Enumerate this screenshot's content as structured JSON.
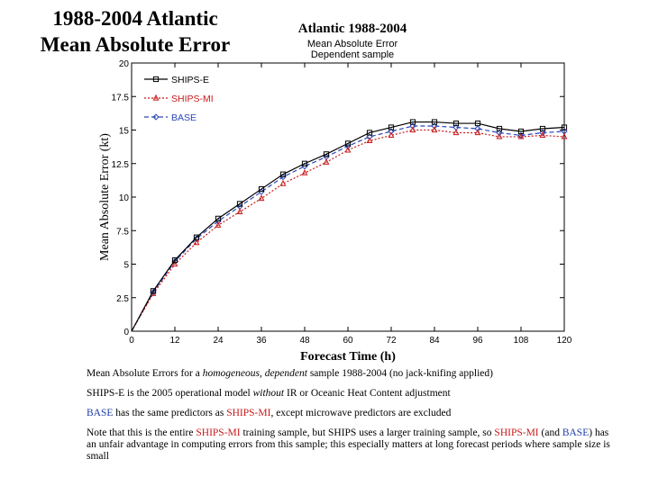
{
  "slide": {
    "title_line1": "1988-2004 Atlantic",
    "title_line2": "Mean Absolute Error"
  },
  "colors": {
    "ships_e": "#000000",
    "ships_mi": "#c8191a",
    "base": "#2a46b8",
    "red_text": "#c8191a",
    "blue_text": "#1c3da6"
  },
  "chart_data": {
    "type": "line",
    "title": "Atlantic 1988-2004",
    "subtitle_lines": [
      "Mean Absolute Error",
      "Dependent sample"
    ],
    "xlabel": "Forecast Time (h)",
    "ylabel": "Mean Absolute Error (kt)",
    "x": [
      0,
      6,
      12,
      18,
      24,
      30,
      36,
      42,
      48,
      54,
      60,
      66,
      72,
      78,
      84,
      90,
      96,
      102,
      108,
      114,
      120
    ],
    "xticks": [
      0,
      12,
      24,
      36,
      48,
      60,
      72,
      84,
      96,
      108,
      120
    ],
    "xtick_labels": [
      "0",
      "12",
      "24",
      "36",
      "48",
      "60",
      "72",
      "84",
      "96",
      "108",
      "120"
    ],
    "yticks": [
      0,
      2.5,
      5,
      7.5,
      10,
      12.5,
      15,
      17.5,
      20
    ],
    "ytick_labels": [
      "0",
      "2.5",
      "5",
      "7.5",
      "10",
      "12.5",
      "15",
      "17.5",
      "20"
    ],
    "xlim": [
      0,
      120
    ],
    "ylim": [
      0,
      20
    ],
    "legend_position": "top-left",
    "grid": false,
    "series": [
      {
        "name": "SHIPS-E",
        "color": "#000000",
        "dash": "solid",
        "marker": "square",
        "values": [
          0.0,
          3.0,
          5.3,
          7.0,
          8.4,
          9.5,
          10.6,
          11.7,
          12.5,
          13.2,
          14.0,
          14.8,
          15.2,
          15.6,
          15.6,
          15.5,
          15.5,
          15.1,
          14.9,
          15.1,
          15.2
        ]
      },
      {
        "name": "SHIPS-MI",
        "color": "#c8191a",
        "dash": "dotted",
        "marker": "triangle",
        "values": [
          0.0,
          2.8,
          5.0,
          6.6,
          7.9,
          8.9,
          9.9,
          11.0,
          11.8,
          12.6,
          13.5,
          14.2,
          14.6,
          15.0,
          15.0,
          14.8,
          14.8,
          14.5,
          14.5,
          14.6,
          14.5
        ]
      },
      {
        "name": "BASE",
        "color": "#2a46b8",
        "dash": "dashed",
        "marker": "diamond",
        "values": [
          0.0,
          2.9,
          5.2,
          6.9,
          8.2,
          9.3,
          10.4,
          11.5,
          12.3,
          13.0,
          13.8,
          14.5,
          14.9,
          15.3,
          15.3,
          15.2,
          15.1,
          14.8,
          14.6,
          14.8,
          14.9
        ]
      }
    ]
  },
  "notes": {
    "p1_a": "Mean Absolute Errors for a ",
    "p1_homog": "homogeneous, dependent",
    "p1_b": " sample 1988-2004 (no jack-knifing applied)",
    "p2_a": "SHIPS-E is the 2005 operational model ",
    "p2_without": "without",
    "p2_b": " IR or Oceanic Heat Content adjustment",
    "p3_base": "BASE",
    "p3_a": " has the same predictors as ",
    "p3_shipsmi": "SHIPS-MI",
    "p3_b": ", except microwave predictors are excluded",
    "p4_a": "Note that this is the entire ",
    "p4_shipsmi1": "SHIPS-MI",
    "p4_b": " training sample, but SHIPS uses a larger training sample, so ",
    "p4_shipsmi2": "SHIPS-MI",
    "p4_c": " (and ",
    "p4_base": "BASE",
    "p4_d": ") has an unfair advantage in computing errors from this sample; this especially matters at long forecast periods where sample size is small"
  }
}
